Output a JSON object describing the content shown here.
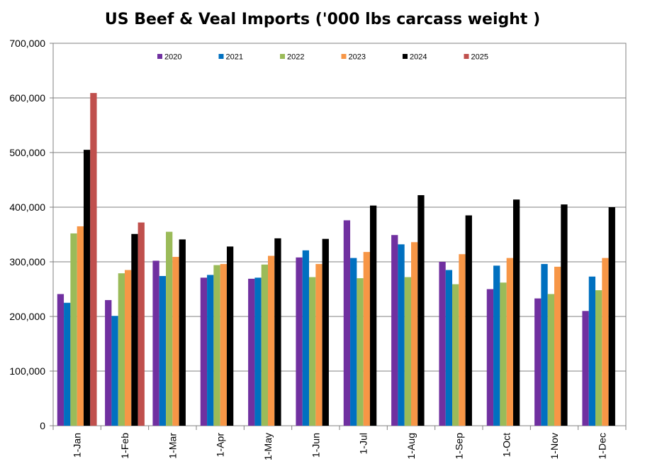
{
  "chart_data": {
    "type": "bar",
    "title": "US Beef & Veal Imports ('000 lbs carcass weight )",
    "xlabel": "",
    "ylabel": "",
    "ylim": [
      0,
      700000
    ],
    "yticks": [
      0,
      100000,
      200000,
      300000,
      400000,
      500000,
      600000,
      700000
    ],
    "ytick_labels": [
      "0",
      "100,000",
      "200,000",
      "300,000",
      "400,000",
      "500,000",
      "600,000",
      "700,000"
    ],
    "grid": true,
    "legend_position": "top",
    "categories": [
      "1-Jan",
      "1-Feb",
      "1-Mar",
      "1-Apr",
      "1-May",
      "1-Jun",
      "1-Jul",
      "1-Aug",
      "1-Sep",
      "1-Oct",
      "1-Nov",
      "1-Dec"
    ],
    "series": [
      {
        "name": "2020",
        "color": "#7030A0",
        "values": [
          241000,
          230000,
          302000,
          271000,
          269000,
          308000,
          376000,
          349000,
          300000,
          250000,
          233000,
          210000
        ]
      },
      {
        "name": "2021",
        "color": "#0070C0",
        "values": [
          225000,
          201000,
          274000,
          276000,
          271000,
          321000,
          307000,
          332000,
          285000,
          293000,
          296000,
          273000
        ]
      },
      {
        "name": "2022",
        "color": "#9BBB59",
        "values": [
          352000,
          279000,
          355000,
          294000,
          295000,
          272000,
          270000,
          272000,
          259000,
          262000,
          241000,
          248000
        ]
      },
      {
        "name": "2023",
        "color": "#F79646",
        "values": [
          365000,
          285000,
          309000,
          296000,
          311000,
          296000,
          318000,
          336000,
          314000,
          307000,
          291000,
          307000
        ]
      },
      {
        "name": "2024",
        "color": "#000000",
        "values": [
          505000,
          351000,
          341000,
          328000,
          343000,
          342000,
          403000,
          422000,
          385000,
          414000,
          405000,
          400000
        ]
      },
      {
        "name": "2025",
        "color": "#C0504D",
        "values": [
          609000,
          372000,
          null,
          null,
          null,
          null,
          null,
          null,
          null,
          null,
          null,
          null
        ]
      }
    ]
  }
}
